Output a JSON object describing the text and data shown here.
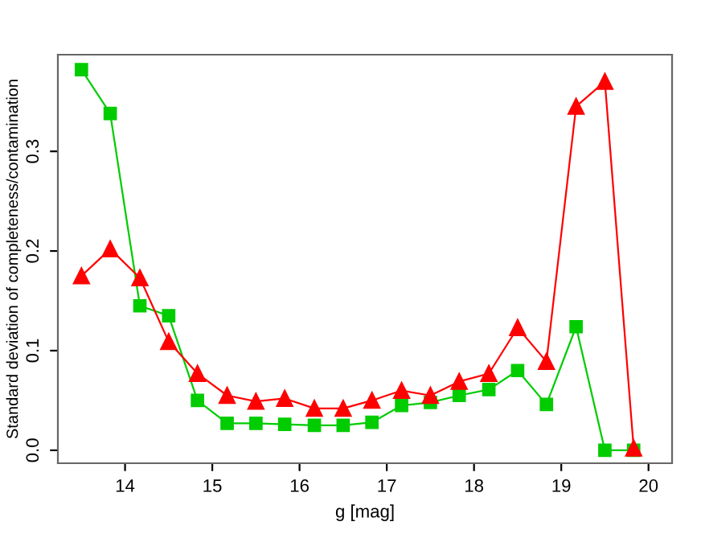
{
  "chart_data": {
    "type": "line",
    "xlabel": "g [mag]",
    "ylabel": "Standard deviation of completeness/contamination",
    "x": [
      13.5,
      13.83,
      14.17,
      14.5,
      14.83,
      15.17,
      15.5,
      15.83,
      16.17,
      16.5,
      16.83,
      17.17,
      17.5,
      17.83,
      18.17,
      18.5,
      18.83,
      19.17,
      19.5,
      19.83
    ],
    "series": [
      {
        "color": "#00cc00",
        "marker": "square",
        "values": [
          0.382,
          0.338,
          0.145,
          0.135,
          0.05,
          0.027,
          0.027,
          0.026,
          0.025,
          0.025,
          0.028,
          0.045,
          0.048,
          0.055,
          0.061,
          0.08,
          0.046,
          0.124,
          0.0,
          0.0
        ]
      },
      {
        "color": "#ff0000",
        "marker": "triangle",
        "values": [
          0.175,
          0.202,
          0.173,
          0.109,
          0.077,
          0.055,
          0.049,
          0.052,
          0.042,
          0.042,
          0.05,
          0.06,
          0.055,
          0.069,
          0.077,
          0.123,
          0.089,
          0.345,
          0.37,
          0.002
        ]
      }
    ],
    "xlim": [
      13.23,
      20.27
    ],
    "ylim": [
      -0.013,
      0.397
    ],
    "xticks": [
      14,
      15,
      16,
      17,
      18,
      19,
      20
    ],
    "yticks": [
      {
        "value": 0,
        "label": "0.0"
      },
      0.1,
      0.2,
      0.3
    ],
    "grid": false,
    "legend": false
  }
}
